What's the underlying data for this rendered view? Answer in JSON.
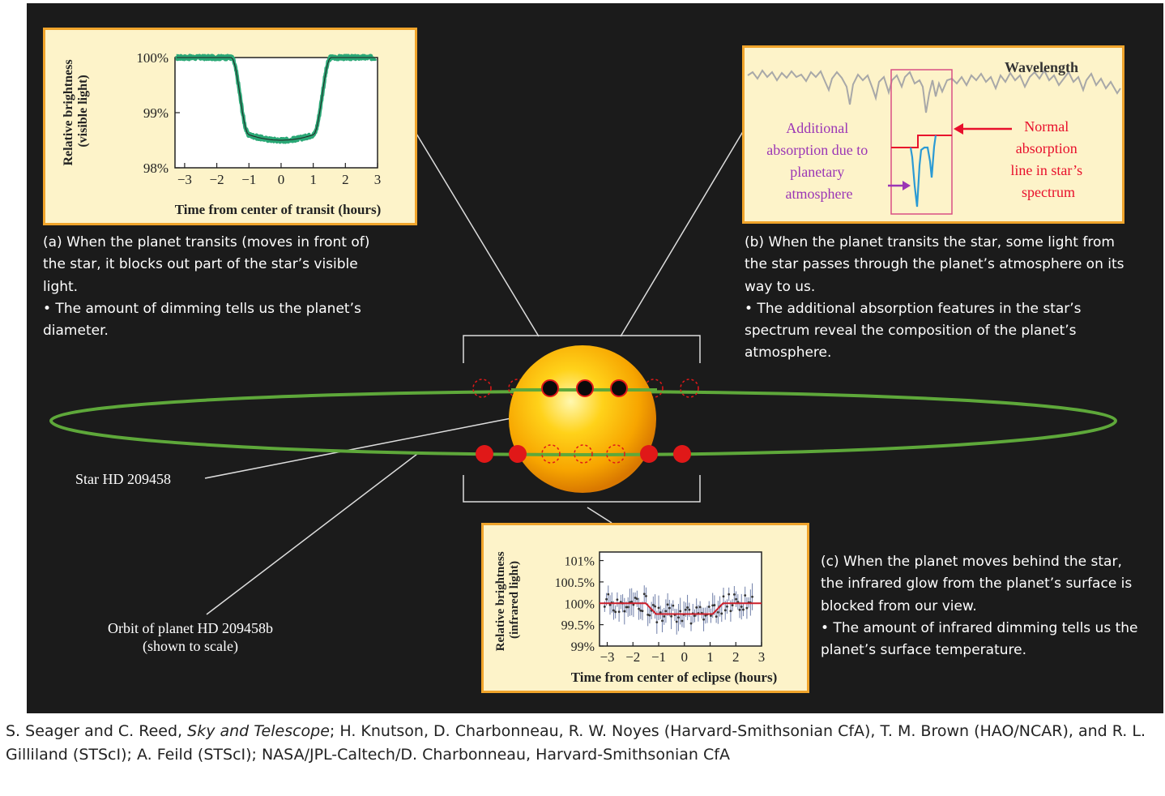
{
  "panel_a": {
    "ylabel_line1": "Relative brightness",
    "ylabel_line2": "(visible light)",
    "xlabel": "Time from center of transit (hours)",
    "yticks": [
      "100%",
      "99%",
      "98%"
    ],
    "xticks": [
      "−3",
      "−2",
      "−1",
      "0",
      "1",
      "2",
      "3"
    ],
    "curve_color": "#2aa876"
  },
  "panel_b": {
    "wavelength_label": "Wavelength",
    "purple_label": [
      "Additional",
      "absorption due to",
      "planetary",
      "atmosphere"
    ],
    "red_label": [
      "Normal",
      "absorption",
      "line in star’s",
      "spectrum"
    ],
    "purple_color": "#9b36b5",
    "red_color": "#e8102c"
  },
  "panel_c": {
    "ylabel_line1": "Relative brightness",
    "ylabel_line2": "(infrared light)",
    "xlabel": "Time from center of eclipse (hours)",
    "yticks": [
      "101%",
      "100.5%",
      "100%",
      "99.5%",
      "99%"
    ],
    "xticks": [
      "−3",
      "−2",
      "−1",
      "0",
      "1",
      "2",
      "3"
    ]
  },
  "caption_a": {
    "line1": "(a) When the planet transits (moves in front of) the star, it blocks out part of the star’s visible light.",
    "line2": "• The amount of dimming tells us the planet’s diameter."
  },
  "caption_b": {
    "line1": "(b) When the planet transits the star, some light from the star passes through the planet’s atmosphere on its way to us.",
    "line2": "• The additional absorption features in the star’s spectrum reveal the composition of the planet’s atmosphere."
  },
  "caption_c": {
    "line1": "(c) When the planet moves behind the star, the infrared glow from the planet’s surface is blocked from our view.",
    "line2": "• The amount of infrared dimming tells us the planet’s surface temperature."
  },
  "labels": {
    "star": "Star HD 209458",
    "orbit_line1": "Orbit of planet HD 209458b",
    "orbit_line2": "(shown to scale)"
  },
  "credit": {
    "part1": "S. Seager and C. Reed, ",
    "italic": "Sky and Telescope",
    "part2": "; H. Knutson, D. Charbonneau, R. W. Noyes (Harvard-Smithsonian CfA), T. M. Brown (HAO/NCAR), and R. L. Gilliland (STScI); A. Feild (STScI); NASA/JPL-Caltech/D. Charbonneau, Harvard-Smithsonian CfA"
  },
  "colors": {
    "background": "#1b1b1b",
    "panel_fill": "#fdf3c9",
    "panel_border": "#f0a42b",
    "orbit": "#5ea83a",
    "planet_red": "#e01818",
    "eclipse_model": "#cc1f2a"
  }
}
